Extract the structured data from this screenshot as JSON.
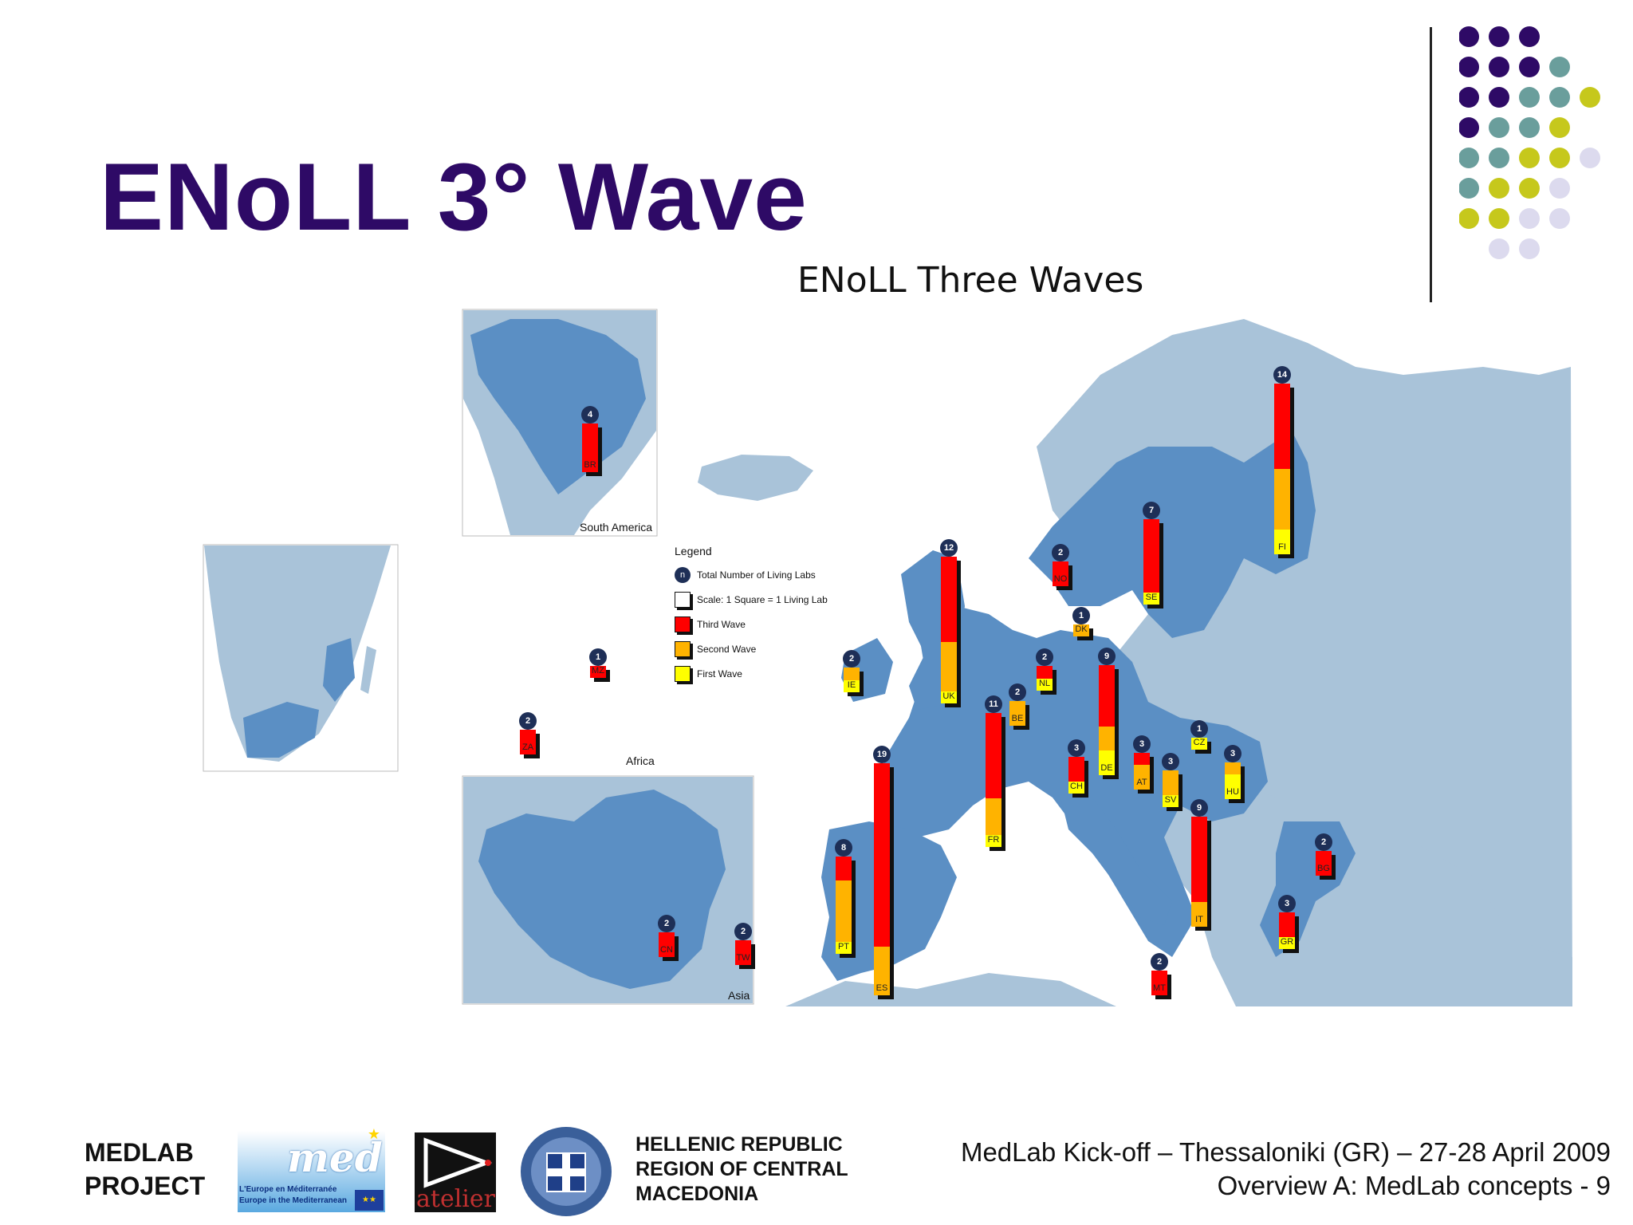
{
  "slide": {
    "title": "ENoLL 3° Wave",
    "map_title": "ENoLL Three Waves"
  },
  "colors": {
    "title": "#2e0a66",
    "third_wave": "#ff0000",
    "second_wave": "#ffb300",
    "first_wave": "#ffff00",
    "highlight_country": "#5b8fc4",
    "other_country": "#a9c3d9",
    "badge": "#1e2f57"
  },
  "insets": {
    "south_america": "South America",
    "africa": "Africa",
    "asia": "Asia"
  },
  "legend": {
    "title": "Legend",
    "items": [
      {
        "key": "n",
        "label": "Total Number of Living Labs"
      },
      {
        "key": "",
        "label": "Scale: 1 Square = 1 Living Lab"
      },
      {
        "key": "",
        "label": "Third Wave"
      },
      {
        "key": "",
        "label": "Second Wave"
      },
      {
        "key": "",
        "label": "First Wave"
      }
    ]
  },
  "labs": [
    {
      "code": "BR",
      "total": 4,
      "third": 4,
      "second": 0,
      "first": 0
    },
    {
      "code": "MZ",
      "total": 1,
      "third": 1,
      "second": 0,
      "first": 0
    },
    {
      "code": "ZA",
      "total": 2,
      "third": 2,
      "second": 0,
      "first": 0
    },
    {
      "code": "CN",
      "total": 2,
      "third": 2,
      "second": 0,
      "first": 0
    },
    {
      "code": "TW",
      "total": 2,
      "third": 2,
      "second": 0,
      "first": 0
    },
    {
      "code": "IE",
      "total": 2,
      "third": 0,
      "second": 1,
      "first": 1
    },
    {
      "code": "UK",
      "total": 12,
      "third": 7,
      "second": 4,
      "first": 1
    },
    {
      "code": "ES",
      "total": 19,
      "third": 15,
      "second": 4,
      "first": 0
    },
    {
      "code": "PT",
      "total": 8,
      "third": 2,
      "second": 5,
      "first": 1
    },
    {
      "code": "FR",
      "total": 11,
      "third": 7,
      "second": 3,
      "first": 1
    },
    {
      "code": "BE",
      "total": 2,
      "third": 0,
      "second": 2,
      "first": 0
    },
    {
      "code": "NL",
      "total": 2,
      "third": 1,
      "second": 0,
      "first": 1
    },
    {
      "code": "NO",
      "total": 2,
      "third": 2,
      "second": 0,
      "first": 0
    },
    {
      "code": "DK",
      "total": 1,
      "third": 0,
      "second": 1,
      "first": 0
    },
    {
      "code": "SE",
      "total": 7,
      "third": 6,
      "second": 0,
      "first": 1
    },
    {
      "code": "FI",
      "total": 14,
      "third": 7,
      "second": 5,
      "first": 2
    },
    {
      "code": "DE",
      "total": 9,
      "third": 5,
      "second": 2,
      "first": 2
    },
    {
      "code": "CH",
      "total": 3,
      "third": 2,
      "second": 0,
      "first": 1
    },
    {
      "code": "AT",
      "total": 3,
      "third": 1,
      "second": 2,
      "first": 0
    },
    {
      "code": "SV",
      "total": 3,
      "third": 0,
      "second": 2,
      "first": 1
    },
    {
      "code": "CZ",
      "total": 1,
      "third": 0,
      "second": 0,
      "first": 1
    },
    {
      "code": "HU",
      "total": 3,
      "third": 0,
      "second": 1,
      "first": 2
    },
    {
      "code": "IT",
      "total": 9,
      "third": 7,
      "second": 2,
      "first": 0
    },
    {
      "code": "MT",
      "total": 2,
      "third": 2,
      "second": 0,
      "first": 0
    },
    {
      "code": "BG",
      "total": 2,
      "third": 2,
      "second": 0,
      "first": 0
    },
    {
      "code": "GR",
      "total": 3,
      "third": 2,
      "second": 0,
      "first": 1
    }
  ],
  "footer": {
    "project_line1": "MEDLAB",
    "project_line2": "PROJECT",
    "med_logo_line1": "L'Europe en Méditerranée",
    "med_logo_line2": "Europe in the Mediterranean",
    "med_logo_word": "med",
    "atelier_logo_word": "atelier",
    "region_line1": "HELLENIC REPUBLIC",
    "region_line2": "REGION OF CENTRAL",
    "region_line3": "MACEDONIA",
    "event_line": "MedLab Kick-off – Thessaloniki (GR) – 27-28 April 2009",
    "page_line": "Overview A: MedLab concepts - 9"
  }
}
